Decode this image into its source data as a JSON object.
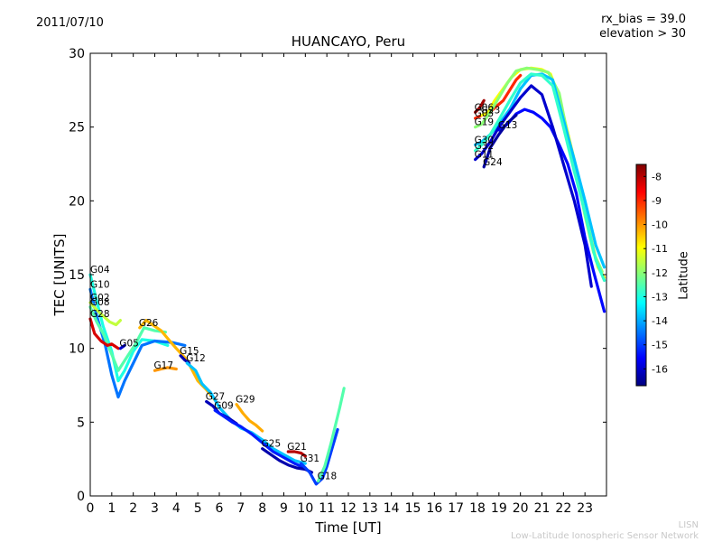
{
  "header": {
    "date": "2011/07/10",
    "rx_bias": "rx_bias = 39.0",
    "elevation": "elevation > 30"
  },
  "footer": {
    "org_short": "LISN",
    "org_long": "Low-Latitude Ionospheric Sensor Network"
  },
  "chart_data": {
    "type": "scatter",
    "title": "HUANCAYO, Peru",
    "xlabel": "Time [UT]",
    "ylabel": "TEC [UNITS]",
    "xlim": [
      0,
      24
    ],
    "ylim": [
      0,
      30
    ],
    "xticks": [
      "0",
      "1",
      "2",
      "3",
      "4",
      "5",
      "6",
      "7",
      "8",
      "9",
      "10",
      "11",
      "12",
      "13",
      "14",
      "15",
      "16",
      "17",
      "18",
      "19",
      "20",
      "21",
      "22",
      "23"
    ],
    "yticks": [
      "0",
      "5",
      "10",
      "15",
      "20",
      "25",
      "30"
    ],
    "colorbar": {
      "label": "Latitude",
      "range": [
        -16.7,
        -7.5
      ],
      "ticks": [
        "-8",
        "-9",
        "-10",
        "-11",
        "-12",
        "-13",
        "-14",
        "-15",
        "-16"
      ]
    },
    "series": [
      {
        "name": "G04",
        "latitude": -13.0,
        "points": [
          [
            0,
            15
          ],
          [
            0.3,
            13.2
          ],
          [
            0.6,
            11.5
          ],
          [
            1.0,
            9.8
          ],
          [
            1.3,
            7.8
          ],
          [
            1.6,
            8.5
          ],
          [
            2.0,
            9.8
          ],
          [
            2.4,
            10.6
          ],
          [
            3.0,
            10.5
          ],
          [
            3.6,
            10.2
          ]
        ]
      },
      {
        "name": "G10",
        "latitude": -14.5,
        "points": [
          [
            0,
            14
          ],
          [
            0.3,
            12.2
          ],
          [
            0.7,
            10.2
          ],
          [
            1.0,
            8.2
          ],
          [
            1.3,
            6.7
          ],
          [
            1.6,
            7.8
          ],
          [
            2.0,
            9.0
          ],
          [
            2.4,
            10.2
          ],
          [
            3.0,
            10.5
          ],
          [
            3.8,
            10.4
          ],
          [
            4.4,
            10.2
          ]
        ]
      },
      {
        "name": "G02",
        "latitude": -11.5,
        "points": [
          [
            0,
            13.1
          ],
          [
            0.3,
            12.6
          ],
          [
            0.6,
            12.2
          ],
          [
            0.9,
            11.8
          ],
          [
            1.2,
            11.6
          ],
          [
            1.4,
            11.9
          ]
        ]
      },
      {
        "name": "G08",
        "latitude": -12.5,
        "points": [
          [
            0,
            12.8
          ],
          [
            0.3,
            11.8
          ],
          [
            0.6,
            11.0
          ],
          [
            1.0,
            9.6
          ],
          [
            1.3,
            8.5
          ],
          [
            1.7,
            9.4
          ],
          [
            2.1,
            10.3
          ],
          [
            2.5,
            11.4
          ],
          [
            3.0,
            11.2
          ],
          [
            3.5,
            11.1
          ]
        ]
      },
      {
        "name": "G28",
        "latitude": -8.3,
        "points": [
          [
            0,
            12
          ],
          [
            0.2,
            11
          ],
          [
            0.5,
            10.5
          ],
          [
            0.8,
            10.2
          ],
          [
            1.0,
            10.3
          ],
          [
            1.3,
            10.0
          ]
        ]
      },
      {
        "name": "G05",
        "latitude": -16.0,
        "points": [
          [
            1.4,
            10
          ],
          [
            1.6,
            10.2
          ]
        ]
      },
      {
        "name": "G26",
        "latitude": -10.3,
        "points": [
          [
            2.3,
            11.4
          ],
          [
            2.6,
            11.9
          ],
          [
            3.0,
            11.5
          ],
          [
            3.3,
            11.2
          ],
          [
            3.7,
            10.5
          ],
          [
            4.0,
            10.0
          ],
          [
            4.5,
            9.2
          ],
          [
            5.0,
            7.8
          ],
          [
            5.4,
            7.2
          ],
          [
            5.8,
            6.5
          ]
        ]
      },
      {
        "name": "G17",
        "latitude": -10.0,
        "points": [
          [
            3.0,
            8.5
          ],
          [
            3.3,
            8.6
          ],
          [
            3.6,
            8.7
          ],
          [
            4.0,
            8.6
          ]
        ]
      },
      {
        "name": "G15",
        "latitude": -16.3,
        "points": [
          [
            4.2,
            9.5
          ],
          [
            4.4,
            9.2
          ],
          [
            4.6,
            9.0
          ]
        ]
      },
      {
        "name": "G12",
        "latitude": -13.8,
        "points": [
          [
            4.5,
            9.0
          ],
          [
            4.9,
            8.5
          ],
          [
            5.2,
            7.6
          ],
          [
            5.6,
            7.0
          ],
          [
            6.0,
            6.0
          ],
          [
            6.5,
            5.2
          ],
          [
            7.0,
            4.6
          ],
          [
            7.5,
            4.3
          ],
          [
            8.0,
            3.8
          ],
          [
            8.5,
            3.2
          ],
          [
            9.0,
            2.8
          ],
          [
            9.5,
            2.4
          ],
          [
            10.0,
            2.2
          ]
        ]
      },
      {
        "name": "G27",
        "latitude": -16.2,
        "points": [
          [
            5.4,
            6.4
          ],
          [
            5.7,
            6.1
          ],
          [
            6.0,
            5.6
          ],
          [
            6.4,
            5.3
          ],
          [
            6.8,
            4.9
          ]
        ]
      },
      {
        "name": "G09",
        "latitude": -15.3,
        "points": [
          [
            5.8,
            5.8
          ],
          [
            6.2,
            5.4
          ],
          [
            6.6,
            5.0
          ],
          [
            7.0,
            4.7
          ],
          [
            7.5,
            4.2
          ],
          [
            8.0,
            3.6
          ],
          [
            8.5,
            3.0
          ],
          [
            9.0,
            2.6
          ],
          [
            9.5,
            2.2
          ],
          [
            10.0,
            1.9
          ]
        ]
      },
      {
        "name": "G29",
        "latitude": -10.2,
        "points": [
          [
            6.8,
            6.2
          ],
          [
            7.1,
            5.6
          ],
          [
            7.4,
            5.1
          ],
          [
            7.7,
            4.8
          ],
          [
            8.0,
            4.4
          ]
        ]
      },
      {
        "name": "G25",
        "latitude": -16.3,
        "points": [
          [
            8.0,
            3.2
          ],
          [
            8.4,
            2.8
          ],
          [
            8.8,
            2.4
          ],
          [
            9.2,
            2.1
          ],
          [
            9.6,
            1.9
          ],
          [
            10.0,
            1.8
          ],
          [
            10.3,
            1.6
          ]
        ]
      },
      {
        "name": "G21",
        "latitude": -8.0,
        "points": [
          [
            9.2,
            3.0
          ],
          [
            9.5,
            3.0
          ],
          [
            9.8,
            2.9
          ],
          [
            10.0,
            2.7
          ]
        ]
      },
      {
        "name": "G31",
        "latitude": -15.0,
        "points": [
          [
            9.8,
            2.2
          ],
          [
            10.2,
            1.6
          ],
          [
            10.5,
            0.8
          ],
          [
            10.8,
            1.2
          ],
          [
            11.0,
            2.0
          ],
          [
            11.3,
            3.5
          ],
          [
            11.5,
            4.5
          ]
        ]
      },
      {
        "name": "G18",
        "latitude": -12.5,
        "points": [
          [
            10.6,
            1.0
          ],
          [
            10.9,
            2.0
          ],
          [
            11.2,
            3.6
          ],
          [
            11.4,
            4.8
          ],
          [
            11.6,
            6.0
          ],
          [
            11.8,
            7.3
          ]
        ]
      },
      {
        "name": "G06",
        "latitude": -7.8,
        "points": [
          [
            17.9,
            26.0
          ],
          [
            18.1,
            26.3
          ],
          [
            18.3,
            26.8
          ]
        ]
      },
      {
        "name": "G03",
        "latitude": -9.0,
        "points": [
          [
            17.9,
            25.6
          ],
          [
            18.2,
            25.8
          ],
          [
            18.5,
            25.9
          ],
          [
            18.8,
            26.3
          ],
          [
            19.2,
            26.8
          ],
          [
            19.5,
            27.5
          ],
          [
            19.8,
            28.2
          ],
          [
            20.0,
            28.5
          ]
        ]
      },
      {
        "name": "G23",
        "latitude": -11.0,
        "points": [
          [
            18.2,
            25.8
          ],
          [
            18.5,
            26.0
          ],
          [
            18.8,
            26.8
          ],
          [
            19.2,
            27.6
          ],
          [
            19.6,
            28.4
          ],
          [
            20.0,
            28.9
          ],
          [
            20.5,
            29.0
          ],
          [
            21.0,
            28.9
          ],
          [
            21.4,
            28.6
          ],
          [
            21.8,
            27.0
          ],
          [
            22.3,
            24.0
          ],
          [
            22.8,
            21.0
          ],
          [
            23.2,
            18.0
          ],
          [
            23.6,
            15.5
          ],
          [
            23.9,
            14.8
          ]
        ]
      },
      {
        "name": "G19",
        "latitude": -12.0,
        "points": [
          [
            17.9,
            25.0
          ],
          [
            18.2,
            25.2
          ],
          [
            18.6,
            26.0
          ],
          [
            19.0,
            27.0
          ],
          [
            19.4,
            28.0
          ],
          [
            19.8,
            28.8
          ],
          [
            20.3,
            29.0
          ],
          [
            20.8,
            28.9
          ],
          [
            21.3,
            28.7
          ],
          [
            21.8,
            27.3
          ],
          [
            22.2,
            24.4
          ],
          [
            22.6,
            22.0
          ],
          [
            23.0,
            19.0
          ],
          [
            23.4,
            16.5
          ],
          [
            23.8,
            15.2
          ]
        ]
      },
      {
        "name": "G13",
        "latitude": -15.5,
        "points": [
          [
            19.0,
            24.8
          ],
          [
            19.4,
            25.2
          ],
          [
            19.8,
            25.9
          ],
          [
            20.2,
            26.2
          ],
          [
            20.6,
            26.0
          ],
          [
            21.0,
            25.6
          ],
          [
            21.4,
            25.0
          ],
          [
            21.8,
            23.8
          ],
          [
            22.2,
            22.5
          ],
          [
            22.6,
            20.5
          ],
          [
            23.0,
            17.5
          ],
          [
            23.4,
            15.2
          ],
          [
            23.9,
            12.5
          ]
        ]
      },
      {
        "name": "G30",
        "latitude": -13.8,
        "points": [
          [
            17.9,
            23.8
          ],
          [
            18.2,
            24.0
          ],
          [
            18.6,
            24.5
          ],
          [
            19.0,
            25.2
          ],
          [
            19.5,
            26.2
          ],
          [
            20.0,
            27.6
          ],
          [
            20.5,
            28.5
          ],
          [
            21.0,
            28.6
          ],
          [
            21.5,
            28.2
          ],
          [
            22.0,
            25.5
          ],
          [
            22.5,
            22.8
          ],
          [
            23.0,
            20.0
          ],
          [
            23.5,
            17.0
          ],
          [
            23.9,
            15.5
          ]
        ]
      },
      {
        "name": "G32",
        "latitude": -12.8,
        "points": [
          [
            17.9,
            23.4
          ],
          [
            18.2,
            23.8
          ],
          [
            18.6,
            24.5
          ],
          [
            19.0,
            25.5
          ],
          [
            19.5,
            26.8
          ],
          [
            20.0,
            28.0
          ],
          [
            20.5,
            28.6
          ],
          [
            21.0,
            28.5
          ],
          [
            21.5,
            27.8
          ],
          [
            22.0,
            25.0
          ],
          [
            22.5,
            22.0
          ],
          [
            23.0,
            19.2
          ],
          [
            23.5,
            16.0
          ],
          [
            23.9,
            14.6
          ]
        ]
      },
      {
        "name": "G11",
        "latitude": -16.0,
        "points": [
          [
            17.9,
            22.8
          ],
          [
            18.2,
            23.2
          ],
          [
            18.6,
            24.0
          ],
          [
            19.0,
            25.0
          ],
          [
            19.5,
            26.0
          ],
          [
            20.0,
            27.0
          ],
          [
            20.5,
            27.8
          ],
          [
            21.0,
            27.2
          ],
          [
            21.5,
            25.0
          ],
          [
            22.0,
            22.5
          ],
          [
            22.5,
            20.0
          ],
          [
            23.0,
            17.0
          ],
          [
            23.3,
            14.2
          ]
        ]
      },
      {
        "name": "G24",
        "latitude": -16.4,
        "points": [
          [
            18.3,
            22.3
          ],
          [
            18.6,
            23.6
          ],
          [
            19.0,
            24.5
          ],
          [
            19.4,
            25.3
          ],
          [
            19.8,
            25.8
          ]
        ]
      }
    ]
  }
}
